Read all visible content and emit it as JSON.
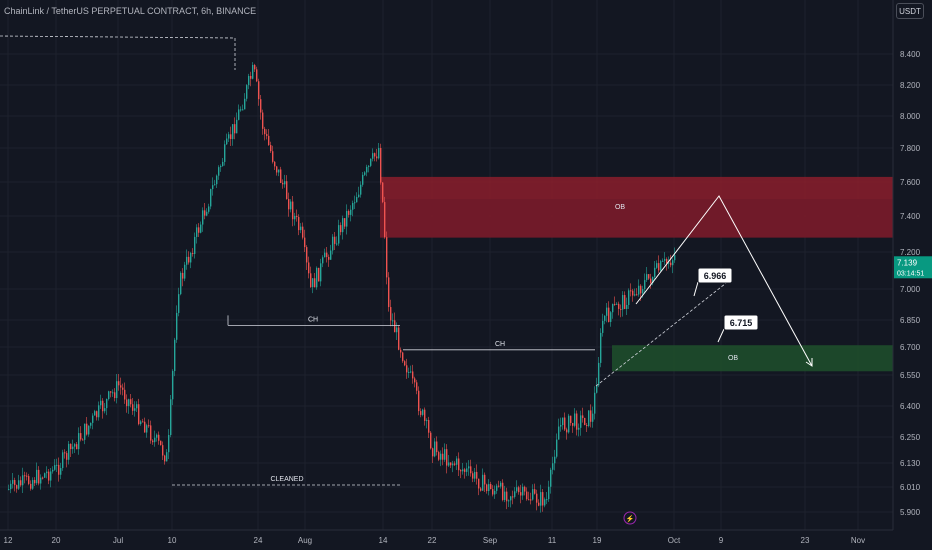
{
  "header": {
    "title": "ChainLink / TetherUS PERPETUAL CONTRACT, 6h, BINANCE"
  },
  "currency_button": "USDT",
  "price_label": {
    "price": "7.139",
    "countdown": "03:14:51"
  },
  "chart_data": {
    "type": "candlestick",
    "ylim": [
      5.8,
      8.6
    ],
    "y_ticks": [
      "8.400",
      "8.200",
      "8.000",
      "7.800",
      "7.600",
      "7.400",
      "7.200",
      "7.000",
      "6.850",
      "6.700",
      "6.550",
      "6.400",
      "6.250",
      "6.130",
      "6.010",
      "5.900"
    ],
    "x_ticks": [
      "12",
      "20",
      "Jul",
      "10",
      "24",
      "Aug",
      "14",
      "22",
      "Sep",
      "11",
      "19",
      "Oct",
      "9",
      "23",
      "Nov"
    ],
    "anchors": [
      {
        "x": "12",
        "y": 6.0
      },
      {
        "x": "20",
        "y": 6.1
      },
      {
        "x": "Jul",
        "y": 6.5
      },
      {
        "x": "10",
        "y": 6.15
      },
      {
        "x": "10",
        "y": 7.0
      },
      {
        "x": "24",
        "y": 8.3
      },
      {
        "x": "24",
        "y": 7.9
      },
      {
        "x": "Aug",
        "y": 7.3
      },
      {
        "x": "Aug",
        "y": 7.0
      },
      {
        "x": "14",
        "y": 7.8
      },
      {
        "x": "14",
        "y": 7.4
      },
      {
        "x": "14",
        "y": 6.9
      },
      {
        "x": "22",
        "y": 6.2
      },
      {
        "x": "Sep",
        "y": 6.0
      },
      {
        "x": "11",
        "y": 5.95
      },
      {
        "x": "11",
        "y": 6.3
      },
      {
        "x": "19",
        "y": 6.35
      },
      {
        "x": "19",
        "y": 6.85
      },
      {
        "x": "Oct",
        "y": 7.18
      }
    ],
    "annotations": {
      "ob_supply": {
        "label": "OB",
        "top": 7.63,
        "bottom": 7.28
      },
      "ob_demand": {
        "label": "OB",
        "top": 6.71,
        "bottom": 6.57
      },
      "ch_1": {
        "label": "CH",
        "y": 6.82
      },
      "ch_2": {
        "label": "CH",
        "y": 6.685
      },
      "cleaned": {
        "label": "CLEANED",
        "y": 6.02
      },
      "target_1": "6.966",
      "target_2": "6.715"
    }
  }
}
